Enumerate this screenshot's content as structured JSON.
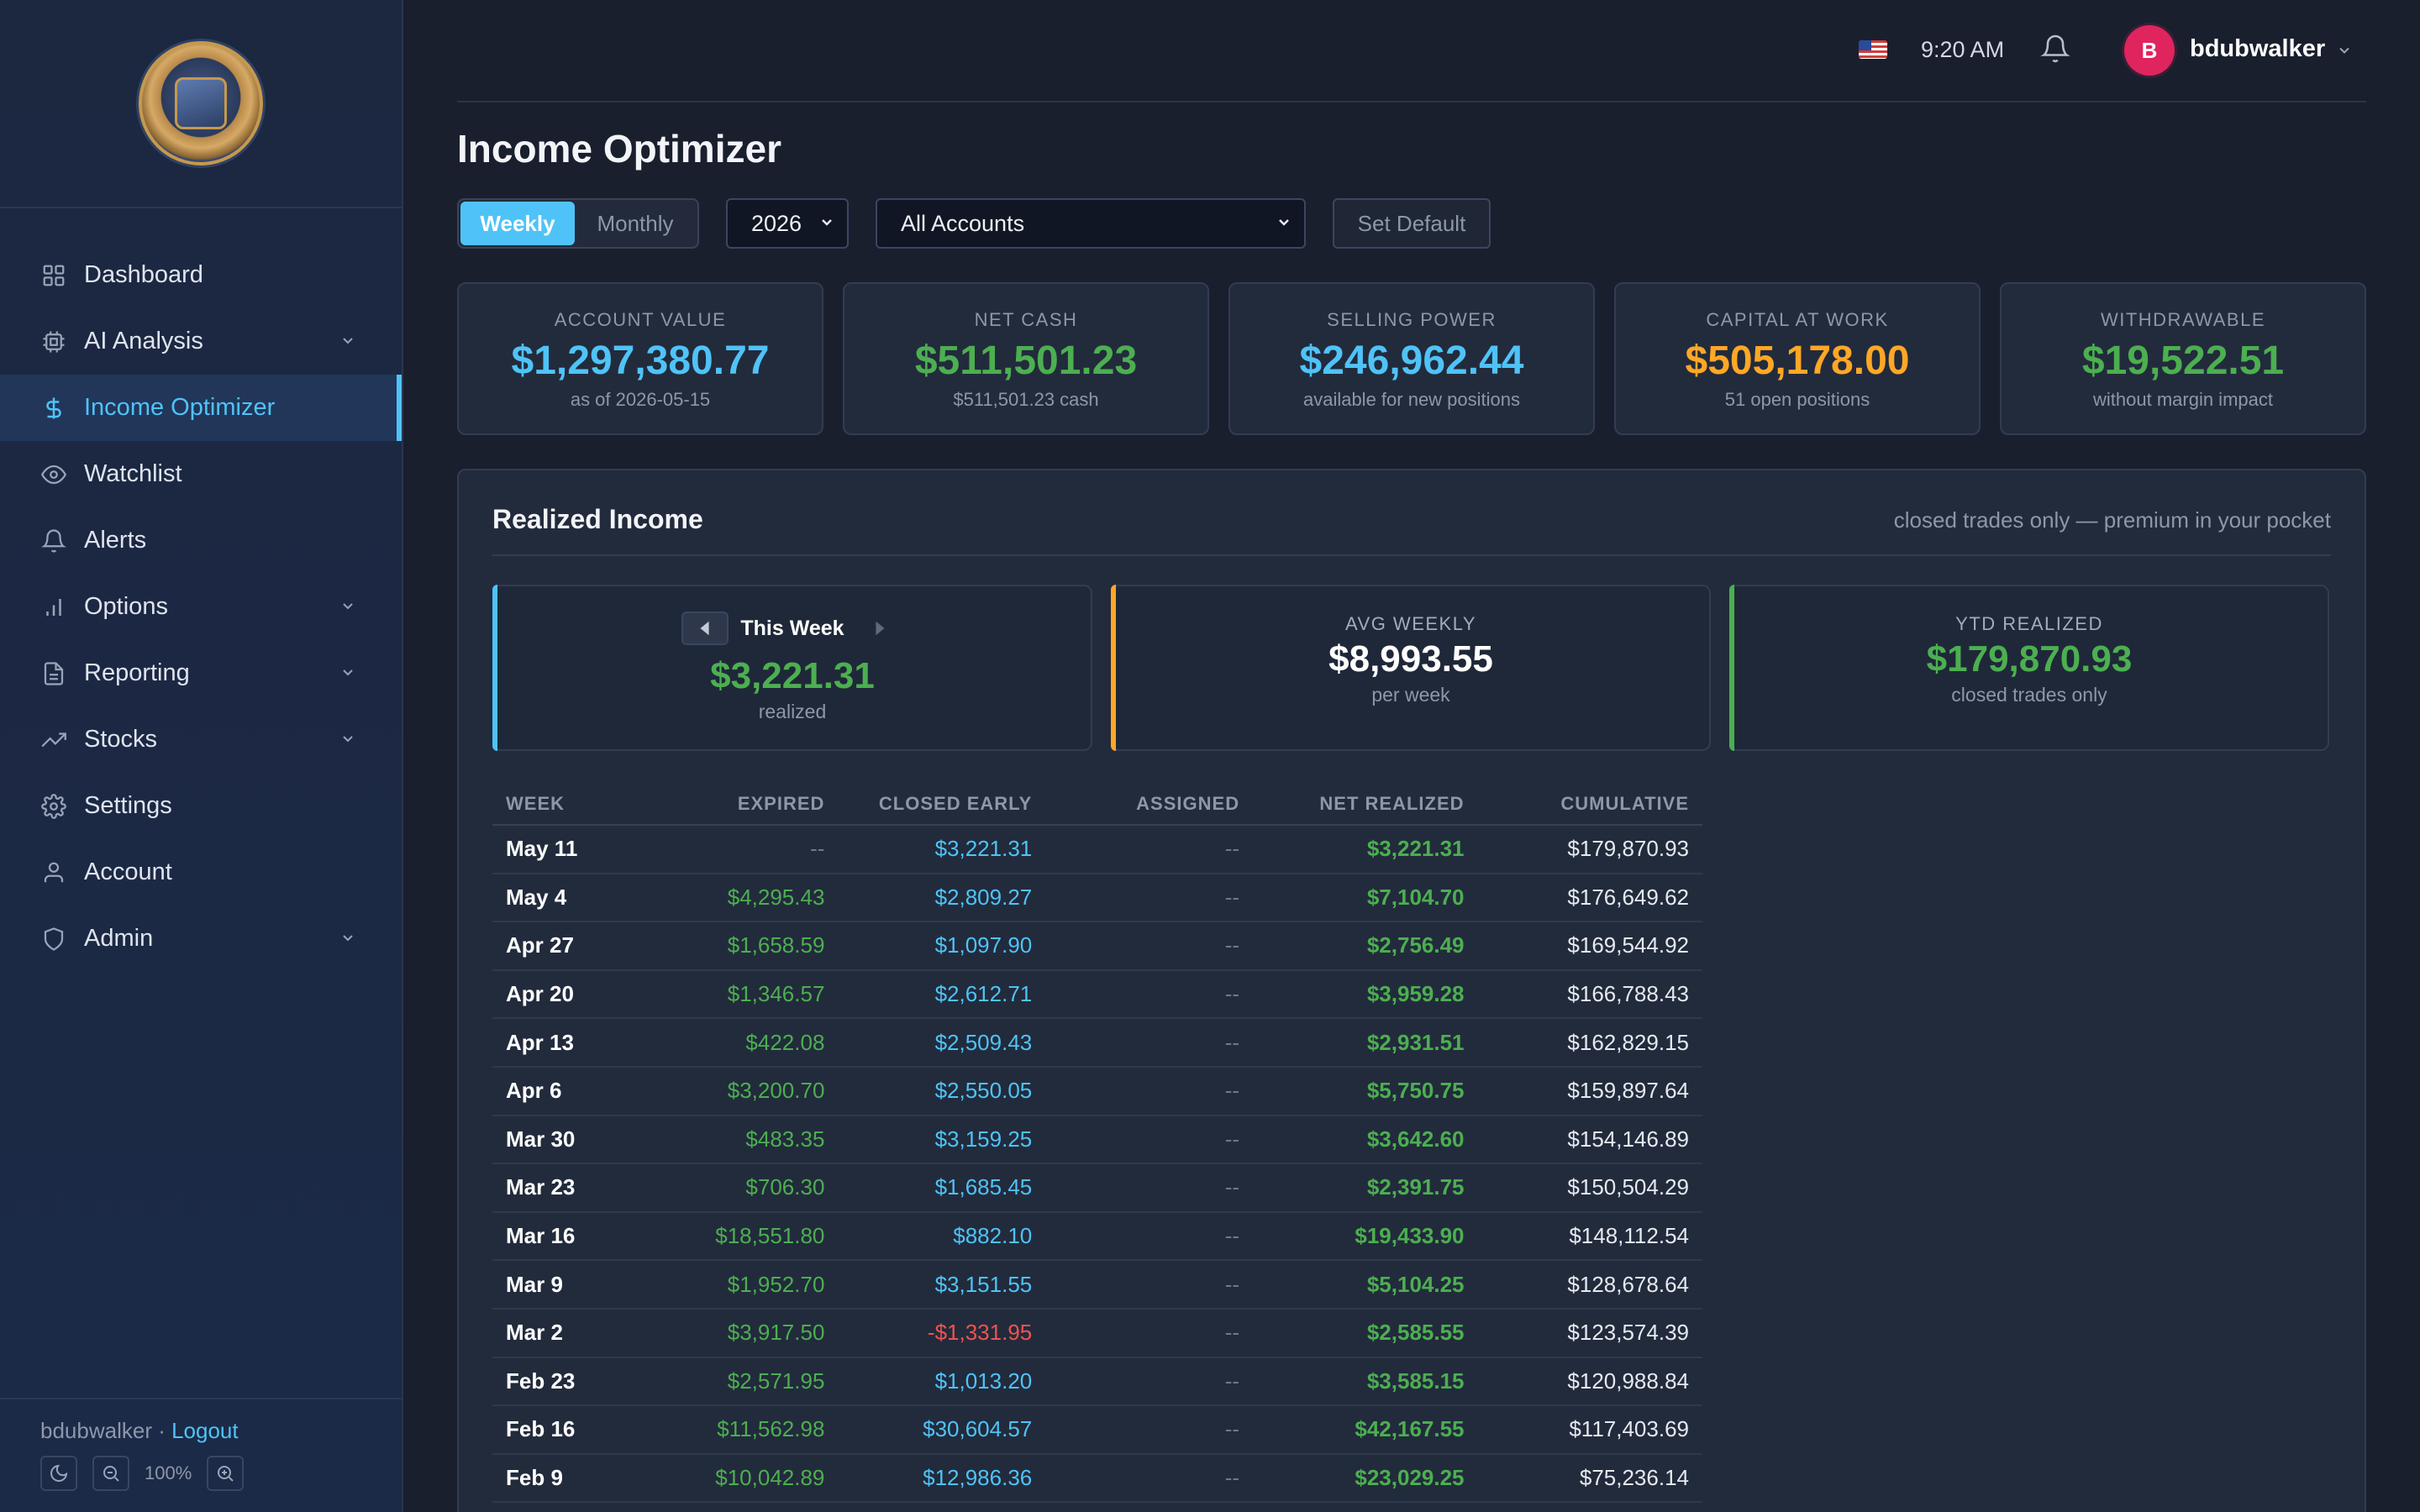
{
  "sidebar": {
    "items": [
      {
        "label": "Dashboard",
        "icon": "grid-icon",
        "expandable": false
      },
      {
        "label": "AI Analysis",
        "icon": "cpu-icon",
        "expandable": true
      },
      {
        "label": "Income Optimizer",
        "icon": "dollar-icon",
        "expandable": false,
        "active": true
      },
      {
        "label": "Watchlist",
        "icon": "eye-icon",
        "expandable": false
      },
      {
        "label": "Alerts",
        "icon": "bell-icon",
        "expandable": false
      },
      {
        "label": "Options",
        "icon": "bar-chart-icon",
        "expandable": true
      },
      {
        "label": "Reporting",
        "icon": "document-icon",
        "expandable": true
      },
      {
        "label": "Stocks",
        "icon": "trending-up-icon",
        "expandable": true
      },
      {
        "label": "Settings",
        "icon": "gear-icon",
        "expandable": false
      },
      {
        "label": "Account",
        "icon": "user-icon",
        "expandable": false
      },
      {
        "label": "Admin",
        "icon": "shield-icon",
        "expandable": true
      }
    ],
    "footer": {
      "user": "bdubwalker",
      "separator": " · ",
      "logout": "Logout",
      "zoom": "100%"
    }
  },
  "topbar": {
    "time": "9:20 AM",
    "avatar_initial": "B",
    "username": "bdubwalker"
  },
  "page": {
    "title": "Income Optimizer"
  },
  "controls": {
    "period_options": [
      "Weekly",
      "Monthly"
    ],
    "period_selected": "Weekly",
    "year": "2026",
    "account": "All Accounts",
    "set_default": "Set Default"
  },
  "stats": [
    {
      "label": "ACCOUNT VALUE",
      "value": "$1,297,380.77",
      "sub": "as of 2026-05-15",
      "color": "#4fc3f7"
    },
    {
      "label": "NET CASH",
      "value": "$511,501.23",
      "sub": "$511,501.23 cash",
      "color": "#4caf50"
    },
    {
      "label": "SELLING POWER",
      "value": "$246,962.44",
      "sub": "available for new positions",
      "color": "#4fc3f7"
    },
    {
      "label": "CAPITAL AT WORK",
      "value": "$505,178.00",
      "sub": "51 open positions",
      "color": "#ffa726"
    },
    {
      "label": "WITHDRAWABLE",
      "value": "$19,522.51",
      "sub": "without margin impact",
      "color": "#4caf50"
    }
  ],
  "realized": {
    "title": "Realized Income",
    "note": "closed trades only — premium in your pocket",
    "this_week": {
      "label": "This Week",
      "value": "$3,221.31",
      "sub": "realized"
    },
    "avg_weekly": {
      "label": "AVG WEEKLY",
      "value": "$8,993.55",
      "sub": "per week"
    },
    "ytd": {
      "label": "YTD REALIZED",
      "value": "$179,870.93",
      "sub": "closed trades only"
    }
  },
  "table": {
    "headers": [
      "WEEK",
      "EXPIRED",
      "CLOSED EARLY",
      "ASSIGNED",
      "NET REALIZED",
      "CUMULATIVE"
    ],
    "rows": [
      [
        "May 11",
        "--",
        "$3,221.31",
        "--",
        "$3,221.31",
        "$179,870.93"
      ],
      [
        "May 4",
        "$4,295.43",
        "$2,809.27",
        "--",
        "$7,104.70",
        "$176,649.62"
      ],
      [
        "Apr 27",
        "$1,658.59",
        "$1,097.90",
        "--",
        "$2,756.49",
        "$169,544.92"
      ],
      [
        "Apr 20",
        "$1,346.57",
        "$2,612.71",
        "--",
        "$3,959.28",
        "$166,788.43"
      ],
      [
        "Apr 13",
        "$422.08",
        "$2,509.43",
        "--",
        "$2,931.51",
        "$162,829.15"
      ],
      [
        "Apr 6",
        "$3,200.70",
        "$2,550.05",
        "--",
        "$5,750.75",
        "$159,897.64"
      ],
      [
        "Mar 30",
        "$483.35",
        "$3,159.25",
        "--",
        "$3,642.60",
        "$154,146.89"
      ],
      [
        "Mar 23",
        "$706.30",
        "$1,685.45",
        "--",
        "$2,391.75",
        "$150,504.29"
      ],
      [
        "Mar 16",
        "$18,551.80",
        "$882.10",
        "--",
        "$19,433.90",
        "$148,112.54"
      ],
      [
        "Mar 9",
        "$1,952.70",
        "$3,151.55",
        "--",
        "$5,104.25",
        "$128,678.64"
      ],
      [
        "Mar 2",
        "$3,917.50",
        "-$1,331.95",
        "--",
        "$2,585.55",
        "$123,574.39"
      ],
      [
        "Feb 23",
        "$2,571.95",
        "$1,013.20",
        "--",
        "$3,585.15",
        "$120,988.84"
      ],
      [
        "Feb 16",
        "$11,562.98",
        "$30,604.57",
        "--",
        "$42,167.55",
        "$117,403.69"
      ],
      [
        "Feb 9",
        "$10,042.89",
        "$12,986.36",
        "--",
        "$23,029.25",
        "$75,236.14"
      ]
    ]
  }
}
